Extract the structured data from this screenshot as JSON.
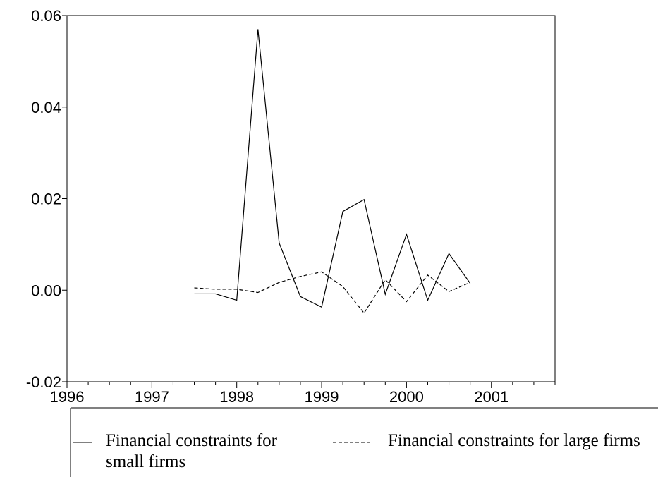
{
  "chart_data": {
    "type": "line",
    "x": [
      1997.5,
      1997.75,
      1998.0,
      1998.25,
      1998.5,
      1998.75,
      1999.0,
      1999.25,
      1999.5,
      1999.75,
      2000.0,
      2000.25,
      2000.5,
      2000.75
    ],
    "series": [
      {
        "name": "Financial constraints for small firms",
        "color": "#000000",
        "line_style": "solid",
        "values": [
          -0.0008,
          -0.0008,
          -0.0022,
          0.057,
          0.0103,
          -0.0014,
          -0.0037,
          0.0172,
          0.0198,
          -0.0009,
          0.0122,
          -0.0022,
          0.008,
          0.0015
        ]
      },
      {
        "name": "Financial constraints for large firms",
        "color": "#000000",
        "line_style": "dashed",
        "values": [
          0.0005,
          0.0002,
          0.0002,
          -0.0005,
          0.0017,
          0.003,
          0.004,
          0.0008,
          -0.005,
          0.0023,
          -0.0025,
          0.0033,
          -0.0003,
          0.0017
        ]
      }
    ],
    "xlim": [
      1996,
      2001.75
    ],
    "xticks": [
      1996,
      1997,
      1998,
      1999,
      2000,
      2001
    ],
    "xminorticks": [
      1996.25,
      1996.5,
      1996.75,
      1997.25,
      1997.5,
      1997.75,
      1998.25,
      1998.5,
      1998.75,
      1999.25,
      1999.5,
      1999.75,
      2000.25,
      2000.5,
      2000.75,
      2001.25,
      2001.5,
      2001.75
    ],
    "ylim": [
      -0.02,
      0.06
    ],
    "yticks": [
      {
        "value": -0.02,
        "label": "-0.02"
      },
      {
        "value": 0.0,
        "label": "0.00"
      },
      {
        "value": 0.02,
        "label": "0.02"
      },
      {
        "value": 0.04,
        "label": "0.04"
      },
      {
        "value": 0.06,
        "label": "0.06"
      }
    ],
    "grid": false,
    "legend": "bottom"
  }
}
